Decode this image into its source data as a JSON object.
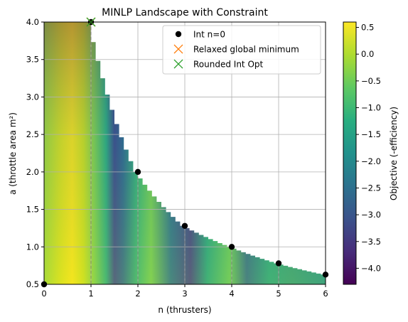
{
  "chart_data": {
    "type": "heatmap",
    "title": "MINLP Landscape with Constraint",
    "xlabel": "n (thrusters)",
    "ylabel": "a (throttle area m²)",
    "xlim": [
      0,
      6
    ],
    "ylim": [
      0.5,
      4.0
    ],
    "xticks": [
      "0",
      "1",
      "2",
      "3",
      "4",
      "5",
      "6"
    ],
    "yticks": [
      "0.5",
      "1.0",
      "1.5",
      "2.0",
      "2.5",
      "3.0",
      "3.5",
      "4.0"
    ],
    "grid": true,
    "colorbar": {
      "label": "Objective (-efficiency)",
      "min": -4.3,
      "max": 0.6,
      "ticks": [
        "0.5",
        "0.0",
        "−0.5",
        "−1.0",
        "−1.5",
        "−2.0",
        "−2.5",
        "−3.0",
        "−3.5",
        "−4.0"
      ],
      "colors": [
        "#440154",
        "#472c7a",
        "#3b528b",
        "#2c728e",
        "#21918c",
        "#28ae80",
        "#5ec962",
        "#addc30",
        "#fde725"
      ]
    },
    "constraint_boundary": {
      "x": [
        1.0,
        2.0,
        3.0,
        4.0,
        5.0,
        6.0
      ],
      "y": [
        4.0,
        2.0,
        1.28,
        1.0,
        0.78,
        0.63
      ]
    },
    "series": [
      {
        "name": "Int n=0",
        "marker": "circle",
        "color": "#000000",
        "x": [
          0,
          1,
          2,
          3,
          4,
          5,
          6
        ],
        "y": [
          0.5,
          4.0,
          2.0,
          1.28,
          1.0,
          0.78,
          0.63
        ]
      },
      {
        "name": "Relaxed global minimum",
        "marker": "x",
        "color": "#ff7f0e",
        "x": [
          1.0
        ],
        "y": [
          4.0
        ]
      },
      {
        "name": "Rounded Int Opt",
        "marker": "x",
        "color": "#2ca02c",
        "x": [
          1.0
        ],
        "y": [
          4.0
        ]
      }
    ],
    "legend_position": "top-right"
  }
}
